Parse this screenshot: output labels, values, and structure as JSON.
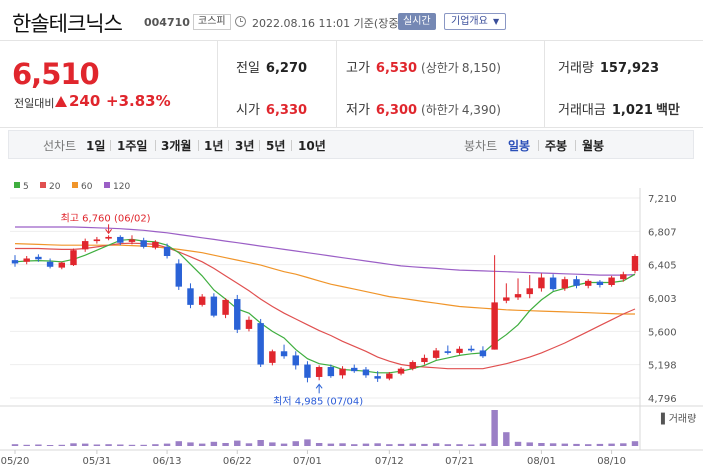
{
  "header": {
    "stock_name": "한솔테크닉스",
    "stock_code": "004710",
    "market": "코스피",
    "datetime": "2022.08.16 11:01 기준(장중)",
    "realtime_label": "실시간",
    "company_info_label": "기업개요"
  },
  "price": {
    "current": "6,510",
    "change_label": "전일대비",
    "change_value": "240",
    "change_rate": "+3.83%"
  },
  "summary": {
    "prev_close_label": "전일",
    "prev_close": "6,270",
    "high_label": "고가",
    "high": "6,530",
    "upper_limit_label": "(상한가",
    "upper_limit": "8,150)",
    "volume_label": "거래량",
    "volume": "157,923",
    "open_label": "시가",
    "open": "6,330",
    "low_label": "저가",
    "low": "6,300",
    "lower_limit_label": "(하한가",
    "lower_limit": "4,390)",
    "amount_label": "거래대금",
    "amount": "1,021",
    "amount_unit": "백만"
  },
  "period_bar": {
    "line_chart_label": "선차트",
    "ranges": [
      "1일",
      "1주일",
      "3개월",
      "1년",
      "3년",
      "5년",
      "10년"
    ],
    "candle_chart_label": "봉차트",
    "candles": [
      "일봉",
      "주봉",
      "월봉"
    ],
    "active_candle": "일봉"
  },
  "colors": {
    "up": "#e0262d",
    "down": "#2a62d6",
    "ma5": "#3fae3f",
    "ma20": "#e05050",
    "ma60": "#f0952a",
    "ma120": "#9b5fc6"
  },
  "chart_data": {
    "type": "candlestick",
    "legend": [
      "5",
      "20",
      "60",
      "120"
    ],
    "y_ticks": [
      "7,210",
      "6,807",
      "6,405",
      "6,003",
      "5,600",
      "5,198",
      "4,796"
    ],
    "ylim": [
      4796,
      7210
    ],
    "x_tick_labels": [
      "05/20",
      "05/31",
      "06/13",
      "06/22",
      "07/01",
      "07/12",
      "07/21",
      "08/01",
      "08/10"
    ],
    "x_tick_index": [
      0,
      7,
      13,
      19,
      25,
      32,
      38,
      45,
      51
    ],
    "high_annotation": "최고 6,760 (06/02)",
    "high_index": 8,
    "high_value": 6760,
    "low_annotation": "최저 4,985 (07/04)",
    "low_index": 26,
    "low_value": 4985,
    "volume_label": "거래량",
    "candles": [
      {
        "o": 6460,
        "h": 6520,
        "c": 6420,
        "l": 6380
      },
      {
        "o": 6440,
        "h": 6510,
        "c": 6480,
        "l": 6410
      },
      {
        "o": 6500,
        "h": 6530,
        "c": 6470,
        "l": 6440
      },
      {
        "o": 6440,
        "h": 6480,
        "c": 6380,
        "l": 6360
      },
      {
        "o": 6370,
        "h": 6440,
        "c": 6430,
        "l": 6350
      },
      {
        "o": 6400,
        "h": 6600,
        "c": 6580,
        "l": 6390
      },
      {
        "o": 6590,
        "h": 6720,
        "c": 6690,
        "l": 6560
      },
      {
        "o": 6690,
        "h": 6740,
        "c": 6710,
        "l": 6660
      },
      {
        "o": 6720,
        "h": 6760,
        "c": 6740,
        "l": 6700
      },
      {
        "o": 6740,
        "h": 6760,
        "c": 6670,
        "l": 6640
      },
      {
        "o": 6680,
        "h": 6760,
        "c": 6710,
        "l": 6650
      },
      {
        "o": 6700,
        "h": 6730,
        "c": 6620,
        "l": 6600
      },
      {
        "o": 6610,
        "h": 6700,
        "c": 6680,
        "l": 6590
      },
      {
        "o": 6620,
        "h": 6660,
        "c": 6510,
        "l": 6480
      },
      {
        "o": 6420,
        "h": 6470,
        "c": 6140,
        "l": 6100
      },
      {
        "o": 6120,
        "h": 6180,
        "c": 5920,
        "l": 5880
      },
      {
        "o": 5920,
        "h": 6050,
        "c": 6020,
        "l": 5900
      },
      {
        "o": 6020,
        "h": 6060,
        "c": 5790,
        "l": 5770
      },
      {
        "o": 5800,
        "h": 6000,
        "c": 5980,
        "l": 5760
      },
      {
        "o": 5990,
        "h": 6040,
        "c": 5620,
        "l": 5580
      },
      {
        "o": 5630,
        "h": 5780,
        "c": 5740,
        "l": 5600
      },
      {
        "o": 5700,
        "h": 5750,
        "c": 5200,
        "l": 5170
      },
      {
        "o": 5220,
        "h": 5380,
        "c": 5360,
        "l": 5190
      },
      {
        "o": 5360,
        "h": 5440,
        "c": 5300,
        "l": 5270
      },
      {
        "o": 5310,
        "h": 5360,
        "c": 5190,
        "l": 5140
      },
      {
        "o": 5200,
        "h": 5240,
        "c": 5040,
        "l": 4985
      },
      {
        "o": 5050,
        "h": 5190,
        "c": 5170,
        "l": 5010
      },
      {
        "o": 5170,
        "h": 5200,
        "c": 5060,
        "l": 5040
      },
      {
        "o": 5070,
        "h": 5180,
        "c": 5150,
        "l": 5030
      },
      {
        "o": 5160,
        "h": 5200,
        "c": 5120,
        "l": 5100
      },
      {
        "o": 5140,
        "h": 5170,
        "c": 5070,
        "l": 5040
      },
      {
        "o": 5060,
        "h": 5120,
        "c": 5030,
        "l": 4990
      },
      {
        "o": 5030,
        "h": 5110,
        "c": 5090,
        "l": 5010
      },
      {
        "o": 5090,
        "h": 5170,
        "c": 5150,
        "l": 5070
      },
      {
        "o": 5150,
        "h": 5250,
        "c": 5230,
        "l": 5130
      },
      {
        "o": 5230,
        "h": 5320,
        "c": 5280,
        "l": 5200
      },
      {
        "o": 5280,
        "h": 5400,
        "c": 5370,
        "l": 5260
      },
      {
        "o": 5360,
        "h": 5430,
        "c": 5340,
        "l": 5320
      },
      {
        "o": 5340,
        "h": 5420,
        "c": 5390,
        "l": 5320
      },
      {
        "o": 5390,
        "h": 5430,
        "c": 5370,
        "l": 5350
      },
      {
        "o": 5370,
        "h": 5420,
        "c": 5300,
        "l": 5280
      },
      {
        "o": 5380,
        "h": 6520,
        "c": 5950,
        "l": 5380
      },
      {
        "o": 5970,
        "h": 6180,
        "c": 6010,
        "l": 5940
      },
      {
        "o": 6010,
        "h": 6240,
        "c": 6050,
        "l": 5980
      },
      {
        "o": 6050,
        "h": 6280,
        "c": 6120,
        "l": 6000
      },
      {
        "o": 6120,
        "h": 6300,
        "c": 6250,
        "l": 6080
      },
      {
        "o": 6250,
        "h": 6290,
        "c": 6110,
        "l": 6090
      },
      {
        "o": 6120,
        "h": 6260,
        "c": 6230,
        "l": 6090
      },
      {
        "o": 6230,
        "h": 6270,
        "c": 6150,
        "l": 6120
      },
      {
        "o": 6150,
        "h": 6230,
        "c": 6210,
        "l": 6120
      },
      {
        "o": 6200,
        "h": 6220,
        "c": 6160,
        "l": 6130
      },
      {
        "o": 6160,
        "h": 6270,
        "c": 6250,
        "l": 6140
      },
      {
        "o": 6230,
        "h": 6320,
        "c": 6290,
        "l": 6200
      },
      {
        "o": 6330,
        "h": 6530,
        "c": 6510,
        "l": 6300
      }
    ],
    "ma5": [
      6440,
      6450,
      6455,
      6450,
      6440,
      6470,
      6520,
      6580,
      6640,
      6700,
      6710,
      6690,
      6680,
      6640,
      6550,
      6410,
      6270,
      6100,
      5990,
      5870,
      5820,
      5700,
      5600,
      5520,
      5380,
      5270,
      5210,
      5190,
      5140,
      5130,
      5120,
      5100,
      5100,
      5120,
      5150,
      5190,
      5250,
      5280,
      5310,
      5330,
      5340,
      5460,
      5560,
      5680,
      5850,
      5980,
      6080,
      6120,
      6160,
      6190,
      6190,
      6190,
      6210,
      6290
    ],
    "ma20": [
      6600,
      6600,
      6600,
      6595,
      6590,
      6590,
      6600,
      6620,
      6640,
      6660,
      6665,
      6660,
      6650,
      6610,
      6560,
      6500,
      6440,
      6360,
      6270,
      6180,
      6090,
      5990,
      5900,
      5820,
      5750,
      5680,
      5610,
      5550,
      5480,
      5420,
      5360,
      5290,
      5240,
      5200,
      5180,
      5170,
      5160,
      5150,
      5150,
      5150,
      5150,
      5180,
      5210,
      5250,
      5290,
      5340,
      5400,
      5460,
      5530,
      5600,
      5670,
      5740,
      5810,
      5870
    ],
    "ma60": [
      6660,
      6655,
      6650,
      6645,
      6640,
      6640,
      6640,
      6640,
      6640,
      6640,
      6635,
      6630,
      6620,
      6605,
      6590,
      6570,
      6550,
      6520,
      6490,
      6460,
      6430,
      6400,
      6360,
      6320,
      6290,
      6250,
      6210,
      6170,
      6140,
      6110,
      6080,
      6050,
      6020,
      6000,
      5980,
      5960,
      5940,
      5920,
      5900,
      5890,
      5880,
      5870,
      5860,
      5855,
      5850,
      5845,
      5840,
      5835,
      5830,
      5825,
      5820,
      5815,
      5810,
      5810
    ],
    "ma120": [
      6860,
      6860,
      6860,
      6860,
      6860,
      6860,
      6855,
      6850,
      6845,
      6840,
      6830,
      6820,
      6805,
      6790,
      6770,
      6750,
      6730,
      6710,
      6690,
      6670,
      6650,
      6630,
      6610,
      6590,
      6570,
      6550,
      6530,
      6510,
      6490,
      6470,
      6450,
      6430,
      6410,
      6390,
      6380,
      6370,
      6360,
      6350,
      6340,
      6335,
      6330,
      6325,
      6320,
      6315,
      6310,
      6305,
      6300,
      6295,
      6290,
      6285,
      6280,
      6280,
      6280,
      6285
    ],
    "volumes": [
      6,
      4,
      5,
      3,
      4,
      9,
      8,
      5,
      6,
      5,
      4,
      4,
      6,
      8,
      16,
      12,
      8,
      14,
      10,
      18,
      9,
      20,
      12,
      8,
      16,
      22,
      10,
      8,
      9,
      6,
      8,
      9,
      6,
      7,
      8,
      7,
      9,
      6,
      6,
      5,
      8,
      120,
      46,
      14,
      12,
      10,
      9,
      8,
      7,
      6,
      7,
      8,
      9,
      16
    ]
  }
}
